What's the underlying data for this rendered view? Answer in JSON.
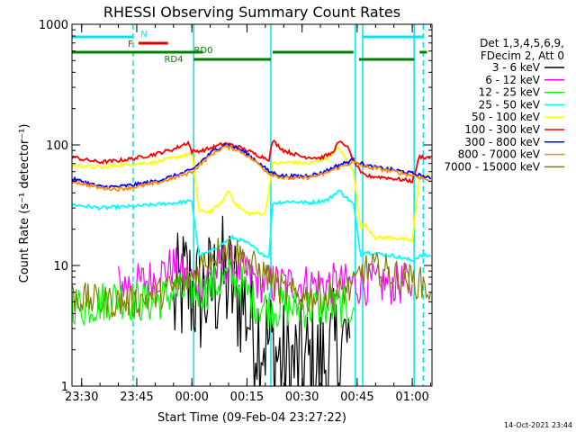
{
  "chart_data": {
    "type": "line",
    "title": "RHESSI Observing Summary Count Rates",
    "xlabel": "Start Time (09-Feb-04 23:27:22)",
    "ylabel": "Count Rate (s⁻¹ detector⁻¹)",
    "y_scale": "log",
    "ylim": [
      1,
      1000
    ],
    "xlim": [
      "23:27:22",
      "01:05:22"
    ],
    "x_ticks": [
      "23:30",
      "23:45",
      "00:00",
      "00:15",
      "00:30",
      "00:45",
      "01:00"
    ],
    "y_ticks": [
      "1",
      "10",
      "100",
      "1000"
    ],
    "legend_header": [
      "Det 1,3,4,5,6,9,",
      "FDecim 2, Att 0"
    ],
    "legend_position": "right",
    "timestamp": "14-Oct-2021 23:44",
    "flags": [
      {
        "label": "N",
        "color": "#00e5ee",
        "segments": [
          [
            "23:27:22",
            "23:44:00"
          ],
          [
            "00:46:30",
            "01:03:00"
          ]
        ]
      },
      {
        "label": "F",
        "color": "#e00000",
        "segments": [
          [
            "23:45:30",
            "23:53:30"
          ]
        ]
      },
      {
        "label": "RD0",
        "color": "#008000",
        "segments": [
          [
            "23:27:22",
            "00:03:00"
          ],
          [
            "00:22:00",
            "00:44:00"
          ],
          [
            "01:02:00",
            "01:04:00"
          ]
        ]
      },
      {
        "label": "RD4",
        "color": "#008000",
        "segments": [
          [
            "00:00:30",
            "00:21:30"
          ],
          [
            "00:45:30",
            "01:00:30"
          ]
        ]
      }
    ],
    "verticals": [
      {
        "color": "#00e5ee",
        "style": "dashed",
        "time": "23:44:00"
      },
      {
        "color": "#00e5ee",
        "style": "solid",
        "time": "00:00:30"
      },
      {
        "color": "#00e5ee",
        "style": "solid",
        "time": "00:21:30"
      },
      {
        "color": "#00e5ee",
        "style": "solid",
        "time": "00:44:30"
      },
      {
        "color": "#00e5ee",
        "style": "solid",
        "time": "00:46:30"
      },
      {
        "color": "#00e5ee",
        "style": "solid",
        "time": "01:00:30"
      },
      {
        "color": "#00e5ee",
        "style": "dashed",
        "time": "01:03:00"
      }
    ],
    "series": [
      {
        "name": "3 - 6 keV",
        "color": "#000000",
        "x": [
          "23:55:00",
          "23:58:00",
          "00:02:00",
          "00:05:00",
          "00:08:00",
          "00:11:00",
          "00:14:00",
          "00:17:00",
          "00:20:00",
          "00:25:00",
          "00:30:00",
          "00:35:00",
          "00:40:00",
          "00:43:00"
        ],
        "y": [
          4.5,
          7.0,
          5.5,
          6.0,
          8.0,
          6.5,
          5.0,
          3.0,
          2.5,
          1.5,
          1.5,
          1.5,
          2.0,
          2.5
        ]
      },
      {
        "name": "6 - 12 keV",
        "color": "#ff00ff",
        "x": [
          "23:40:00",
          "23:45:00",
          "23:50:00",
          "23:55:00",
          "23:58:00",
          "00:02:00",
          "00:05:00",
          "00:09:00",
          "00:12:00",
          "00:16:00",
          "00:20:00",
          "00:30:00",
          "00:40:00",
          "00:45:00",
          "00:47:00",
          "00:50:00",
          "00:55:00",
          "01:00:00"
        ],
        "y": [
          7.0,
          7.0,
          8.0,
          10.0,
          8.0,
          7.5,
          8.0,
          10.5,
          9.5,
          8.0,
          7.0,
          7.0,
          7.0,
          7.0,
          7.0,
          7.0,
          7.0,
          7.0
        ]
      },
      {
        "name": "12 - 25 keV",
        "color": "#00ff00",
        "x": [
          "23:27:22",
          "23:30:00",
          "23:35:00",
          "23:40:00",
          "23:45:00",
          "23:50:00",
          "23:55:00",
          "00:00:00",
          "00:05:00",
          "00:08:00",
          "00:11:00",
          "00:14:00",
          "00:17:00",
          "00:20:00",
          "00:25:00",
          "00:30:00",
          "00:35:00",
          "00:40:00",
          "00:44:00"
        ],
        "y": [
          5.0,
          4.5,
          5.0,
          5.5,
          5.0,
          5.0,
          6.0,
          6.0,
          6.5,
          7.5,
          8.0,
          6.5,
          5.0,
          4.5,
          4.5,
          4.5,
          4.5,
          4.5,
          4.5
        ]
      },
      {
        "name": "25 - 50 keV",
        "color": "#00ffff",
        "x": [
          "23:27:22",
          "23:35:00",
          "23:45:00",
          "23:55:00",
          "00:00:00",
          "00:02:00",
          "00:05:00",
          "00:08:00",
          "00:11:00",
          "00:14:00",
          "00:17:00",
          "00:20:00",
          "00:21:00",
          "00:22:00",
          "00:27:00",
          "00:32:00",
          "00:37:00",
          "00:40:00",
          "00:44:00",
          "00:46:00",
          "00:47:00",
          "00:55:00",
          "01:00:00",
          "01:02:00",
          "01:05:00"
        ],
        "y": [
          32,
          30,
          31,
          33,
          34,
          12,
          13,
          15,
          17,
          16,
          14,
          12,
          12,
          33,
          34,
          33,
          35,
          42,
          32,
          12,
          13,
          12,
          11,
          12,
          12
        ]
      },
      {
        "name": "50 - 100 keV",
        "color": "#ffff00",
        "x": [
          "23:27:22",
          "23:35:00",
          "23:40:00",
          "23:45:00",
          "23:50:00",
          "23:55:00",
          "00:00:00",
          "00:02:00",
          "00:05:00",
          "00:08:00",
          "00:10:00",
          "00:12:00",
          "00:15:00",
          "00:20:00",
          "00:22:00",
          "00:27:00",
          "00:32:00",
          "00:37:00",
          "00:40:00",
          "00:44:00",
          "00:46:00",
          "00:47:00",
          "00:50:00",
          "00:55:00",
          "01:00:00",
          "01:02:00",
          "01:05:00"
        ],
        "y": [
          68,
          65,
          68,
          70,
          72,
          78,
          85,
          28,
          28,
          33,
          42,
          32,
          27,
          27,
          70,
          72,
          70,
          78,
          95,
          60,
          20,
          22,
          17,
          17,
          16,
          55,
          55
        ]
      },
      {
        "name": "100 - 300 keV",
        "color": "#ff0000",
        "x": [
          "23:27:22",
          "23:30:00",
          "23:35:00",
          "23:40:00",
          "23:45:00",
          "23:50:00",
          "23:55:00",
          "23:59:00",
          "00:00:00",
          "00:03:00",
          "00:06:00",
          "00:09:00",
          "00:12:00",
          "00:15:00",
          "00:18:00",
          "00:21:00",
          "00:22:00",
          "00:25:00",
          "00:30:00",
          "00:35:00",
          "00:38:00",
          "00:40:00",
          "00:42:00",
          "00:44:00",
          "00:46:00",
          "00:48:00",
          "00:52:00",
          "00:56:00",
          "01:00:00",
          "01:02:00",
          "01:05:00"
        ],
        "y": [
          80,
          76,
          72,
          74,
          78,
          84,
          92,
          105,
          88,
          90,
          96,
          103,
          98,
          90,
          82,
          76,
          108,
          90,
          80,
          78,
          85,
          105,
          100,
          75,
          58,
          55,
          54,
          52,
          50,
          80,
          78
        ]
      },
      {
        "name": "300 - 800 keV",
        "color": "#0000ff",
        "x": [
          "23:27:22",
          "23:30:00",
          "23:35:00",
          "23:40:00",
          "23:45:00",
          "23:50:00",
          "23:55:00",
          "00:00:00",
          "00:03:00",
          "00:06:00",
          "00:09:00",
          "00:12:00",
          "00:15:00",
          "00:18:00",
          "00:21:00",
          "00:25:00",
          "00:30:00",
          "00:35:00",
          "00:40:00",
          "00:44:00",
          "00:47:00",
          "00:50:00",
          "00:55:00",
          "01:00:00",
          "01:03:00",
          "01:05:00"
        ],
        "y": [
          52,
          50,
          45,
          45,
          47,
          50,
          55,
          62,
          75,
          90,
          100,
          95,
          85,
          72,
          60,
          55,
          55,
          58,
          68,
          75,
          68,
          65,
          62,
          58,
          55,
          52
        ]
      },
      {
        "name": "800 - 7000 keV",
        "color": "#ff8c00",
        "x": [
          "23:27:22",
          "23:30:00",
          "23:35:00",
          "23:40:00",
          "23:45:00",
          "23:50:00",
          "23:55:00",
          "00:00:00",
          "00:03:00",
          "00:06:00",
          "00:09:00",
          "00:12:00",
          "00:15:00",
          "00:18:00",
          "00:21:00",
          "00:25:00",
          "00:30:00",
          "00:35:00",
          "00:40:00",
          "00:44:00",
          "00:47:00",
          "00:50:00",
          "00:55:00",
          "01:00:00",
          "01:03:00",
          "01:05:00"
        ],
        "y": [
          50,
          48,
          44,
          43,
          45,
          48,
          53,
          60,
          72,
          86,
          97,
          92,
          82,
          70,
          58,
          53,
          53,
          56,
          65,
          72,
          66,
          64,
          60,
          56,
          53,
          50
        ]
      },
      {
        "name": "7000 - 15000 keV",
        "color": "#808000",
        "x": [
          "23:27:22",
          "23:35:00",
          "23:45:00",
          "23:55:00",
          "00:00:00",
          "00:03:00",
          "00:06:00",
          "00:09:00",
          "00:12:00",
          "00:15:00",
          "00:18:00",
          "00:21:00",
          "00:25:00",
          "00:30:00",
          "00:35:00",
          "00:40:00",
          "00:44:00",
          "00:46:00",
          "00:50:00",
          "00:55:00",
          "01:00:00",
          "01:03:00",
          "01:05:00"
        ],
        "y": [
          5.5,
          5.0,
          5.0,
          6.5,
          8.0,
          10.5,
          12.5,
          14.0,
          13.0,
          11.0,
          9.0,
          8.0,
          6.0,
          5.5,
          5.5,
          6.0,
          6.5,
          9.0,
          9.5,
          8.5,
          7.5,
          7.0,
          6.0
        ]
      }
    ]
  }
}
